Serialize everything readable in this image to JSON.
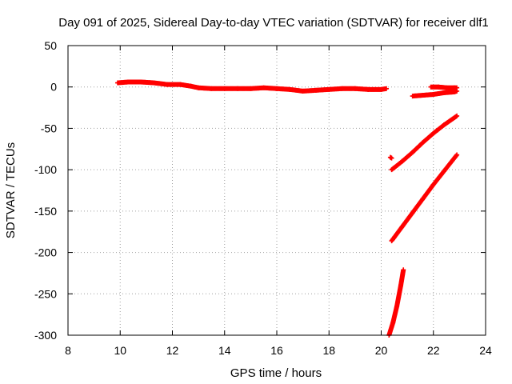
{
  "chart_data": {
    "type": "scatter",
    "title": "Day 091 of 2025, Sidereal Day-to-day VTEC variation (SDTVAR) for receiver dlf1",
    "xlabel": "GPS time / hours",
    "ylabel": "SDTVAR / TECUs",
    "xlim": [
      8,
      24
    ],
    "ylim": [
      -300,
      50
    ],
    "xticks": [
      8,
      10,
      12,
      14,
      16,
      18,
      20,
      22,
      24
    ],
    "yticks": [
      50,
      0,
      -50,
      -100,
      -150,
      -200,
      -250,
      -300
    ],
    "grid": true,
    "marker": "plus",
    "color": "#ff0000",
    "series": [
      {
        "segments": [
          {
            "x": [
              9.9,
              10.3,
              10.8,
              11.3,
              11.8,
              12.3,
              12.7,
              13.0,
              13.5,
              14.0,
              14.5,
              15.0,
              15.5,
              16.0,
              16.5,
              17.0,
              17.5,
              18.0,
              18.5,
              19.0,
              19.5,
              20.0,
              20.2
            ],
            "y": [
              5,
              6,
              6,
              5,
              3,
              3,
              1,
              -1,
              -2,
              -2,
              -2,
              -2,
              -1,
              -2,
              -3,
              -5,
              -4,
              -3,
              -2,
              -2,
              -3,
              -3,
              -2
            ]
          },
          {
            "x": [
              21.2,
              21.6,
              22.0,
              22.4,
              22.8,
              22.9
            ],
            "y": [
              -11,
              -10,
              -9,
              -7,
              -6,
              -5
            ]
          },
          {
            "x": [
              21.9,
              22.2,
              22.5,
              22.8,
              22.9
            ],
            "y": [
              0,
              0,
              -1,
              -1,
              -1
            ]
          },
          {
            "x": [
              20.35,
              20.4
            ],
            "y": [
              -85,
              -86
            ]
          },
          {
            "x": [
              20.4,
              20.8,
              21.2,
              21.6,
              22.0,
              22.4,
              22.9
            ],
            "y": [
              -100,
              -90,
              -79,
              -67,
              -56,
              -46,
              -35
            ]
          },
          {
            "x": [
              20.4,
              20.8,
              21.2,
              21.6,
              22.0,
              22.4,
              22.9
            ],
            "y": [
              -186,
              -169,
              -152,
              -135,
              -118,
              -102,
              -82
            ]
          },
          {
            "x": [
              20.3,
              20.45,
              20.6,
              20.75,
              20.85
            ],
            "y": [
              -300,
              -285,
              -265,
              -240,
              -221
            ]
          }
        ]
      }
    ]
  }
}
